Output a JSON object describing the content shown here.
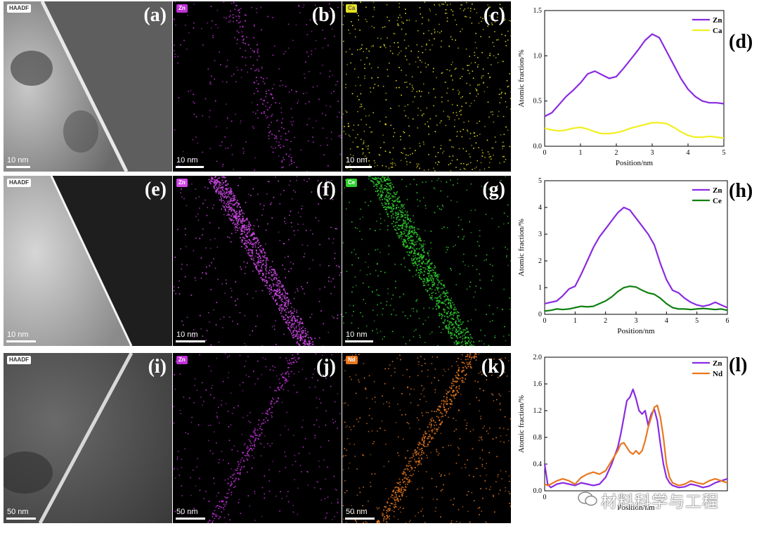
{
  "panels": [
    {
      "id": "a",
      "letter": "(a)",
      "kind": "haadf",
      "tag": "HAADF",
      "scale": "10 nm",
      "variant": 1
    },
    {
      "id": "b",
      "letter": "(b)",
      "kind": "map",
      "tag": "Zn",
      "scale": "10 nm",
      "color": "#c030d8",
      "band": "faint"
    },
    {
      "id": "c",
      "letter": "(c)",
      "kind": "map",
      "tag": "Ca",
      "scale": "10 nm",
      "color": "#e8e020",
      "band": "none"
    },
    {
      "id": "e",
      "letter": "(e)",
      "kind": "haadf",
      "tag": "HAADF",
      "scale": "10 nm",
      "variant": 2
    },
    {
      "id": "f",
      "letter": "(f)",
      "kind": "map",
      "tag": "Zn",
      "scale": "10 nm",
      "color": "#d048e8",
      "band": "strong"
    },
    {
      "id": "g",
      "letter": "(g)",
      "kind": "map",
      "tag": "Ce",
      "scale": "10 nm",
      "color": "#30d030",
      "band": "strong"
    },
    {
      "id": "i",
      "letter": "(i)",
      "kind": "haadf",
      "tag": "HAADF",
      "scale": "50 nm",
      "variant": 3
    },
    {
      "id": "j",
      "letter": "(j)",
      "kind": "map",
      "tag": "Zn",
      "scale": "50 nm",
      "color": "#c030d8",
      "band": "medium"
    },
    {
      "id": "k",
      "letter": "(k)",
      "kind": "map",
      "tag": "Nd",
      "scale": "50 nm",
      "color": "#e87820",
      "band": "medium"
    }
  ],
  "chart_data": [
    {
      "id": "d",
      "letter": "(d)",
      "type": "line",
      "xlabel": "Position/nm",
      "ylabel": "Atomic fraction/%",
      "xlim": [
        0,
        5
      ],
      "ylim": [
        0,
        1.5
      ],
      "xticks": [
        0,
        1,
        2,
        3,
        4,
        5
      ],
      "xtick_labels": [
        "0",
        "1",
        "2",
        "3",
        "4",
        "5"
      ],
      "yticks": [
        0,
        0.5,
        1.0,
        1.5
      ],
      "ytick_labels": [
        "0.0",
        "0.5",
        "1.0",
        "1.5"
      ],
      "legend_position": "top-right",
      "series": [
        {
          "name": "Zn",
          "color": "#8a2be2",
          "x": [
            0,
            0.2,
            0.4,
            0.6,
            0.8,
            1.0,
            1.2,
            1.4,
            1.6,
            1.8,
            2.0,
            2.2,
            2.4,
            2.6,
            2.8,
            3.0,
            3.2,
            3.4,
            3.6,
            3.8,
            4.0,
            4.2,
            4.4,
            4.6,
            4.8,
            5.0
          ],
          "y": [
            0.33,
            0.37,
            0.46,
            0.55,
            0.62,
            0.7,
            0.8,
            0.83,
            0.79,
            0.75,
            0.77,
            0.86,
            0.96,
            1.06,
            1.17,
            1.24,
            1.2,
            1.05,
            0.9,
            0.75,
            0.63,
            0.55,
            0.5,
            0.48,
            0.48,
            0.47
          ]
        },
        {
          "name": "Ca",
          "color": "#f0f020",
          "x": [
            0,
            0.2,
            0.4,
            0.6,
            0.8,
            1.0,
            1.2,
            1.4,
            1.6,
            1.8,
            2.0,
            2.2,
            2.4,
            2.6,
            2.8,
            3.0,
            3.2,
            3.4,
            3.6,
            3.8,
            4.0,
            4.2,
            4.4,
            4.6,
            4.8,
            5.0
          ],
          "y": [
            0.2,
            0.18,
            0.17,
            0.18,
            0.2,
            0.21,
            0.19,
            0.16,
            0.14,
            0.14,
            0.15,
            0.17,
            0.2,
            0.22,
            0.24,
            0.26,
            0.26,
            0.25,
            0.21,
            0.16,
            0.12,
            0.1,
            0.1,
            0.11,
            0.1,
            0.09
          ]
        }
      ]
    },
    {
      "id": "h",
      "letter": "(h)",
      "type": "line",
      "xlabel": "Position/nm",
      "ylabel": "Atomic fraction/%",
      "xlim": [
        0,
        6
      ],
      "ylim": [
        0,
        5
      ],
      "xticks": [
        0,
        1,
        2,
        3,
        4,
        5,
        6
      ],
      "xtick_labels": [
        "0",
        "1",
        "2",
        "3",
        "4",
        "5",
        "6"
      ],
      "yticks": [
        0,
        1,
        2,
        3,
        4,
        5
      ],
      "ytick_labels": [
        "0",
        "1",
        "2",
        "3",
        "4",
        "5"
      ],
      "legend_position": "top-right",
      "series": [
        {
          "name": "Zn",
          "color": "#8a2be2",
          "x": [
            0,
            0.2,
            0.4,
            0.6,
            0.8,
            1.0,
            1.2,
            1.4,
            1.6,
            1.8,
            2.0,
            2.2,
            2.4,
            2.6,
            2.8,
            3.0,
            3.2,
            3.4,
            3.6,
            3.8,
            4.0,
            4.2,
            4.4,
            4.6,
            4.8,
            5.0,
            5.2,
            5.4,
            5.6,
            5.8,
            6.0
          ],
          "y": [
            0.4,
            0.45,
            0.5,
            0.7,
            0.95,
            1.05,
            1.5,
            2.0,
            2.5,
            2.9,
            3.2,
            3.5,
            3.8,
            4.0,
            3.9,
            3.6,
            3.3,
            3.0,
            2.6,
            1.9,
            1.3,
            0.9,
            0.8,
            0.6,
            0.45,
            0.35,
            0.3,
            0.35,
            0.45,
            0.35,
            0.25
          ]
        },
        {
          "name": "Ce",
          "color": "#108010",
          "x": [
            0,
            0.2,
            0.4,
            0.6,
            0.8,
            1.0,
            1.2,
            1.4,
            1.6,
            1.8,
            2.0,
            2.2,
            2.4,
            2.6,
            2.8,
            3.0,
            3.2,
            3.4,
            3.6,
            3.8,
            4.0,
            4.2,
            4.4,
            4.6,
            4.8,
            5.0,
            5.2,
            5.4,
            5.6,
            5.8,
            6.0
          ],
          "y": [
            0.12,
            0.15,
            0.2,
            0.18,
            0.2,
            0.25,
            0.3,
            0.28,
            0.3,
            0.4,
            0.5,
            0.65,
            0.85,
            1.0,
            1.05,
            1.02,
            0.9,
            0.8,
            0.75,
            0.6,
            0.4,
            0.25,
            0.2,
            0.2,
            0.18,
            0.2,
            0.22,
            0.2,
            0.18,
            0.2,
            0.15
          ]
        }
      ]
    },
    {
      "id": "l",
      "letter": "(l)",
      "type": "line",
      "xlabel": "Position/nm",
      "ylabel": "Atomic fraction/%",
      "xlim": [
        0,
        60
      ],
      "ylim": [
        0,
        2.0
      ],
      "xticks": [
        0
      ],
      "xtick_labels": [
        "0"
      ],
      "yticks": [
        0,
        0.4,
        0.8,
        1.2,
        1.6,
        2.0
      ],
      "ytick_labels": [
        "0.0",
        "0.4",
        "0.8",
        "1.2",
        "1.6",
        "2.0"
      ],
      "legend_position": "top-right",
      "series": [
        {
          "name": "Zn",
          "color": "#8a2be2",
          "x": [
            0,
            1,
            2,
            4,
            6,
            8,
            10,
            12,
            14,
            16,
            18,
            20,
            22,
            24,
            25,
            26,
            27,
            28,
            29,
            30,
            31,
            32,
            33,
            34,
            35,
            36,
            37,
            38,
            39,
            40,
            41,
            42,
            44,
            46,
            48,
            50,
            52,
            54,
            56,
            58,
            60
          ],
          "y": [
            0.4,
            0.1,
            0.05,
            0.1,
            0.12,
            0.1,
            0.08,
            0.12,
            0.1,
            0.08,
            0.1,
            0.2,
            0.4,
            0.65,
            0.85,
            1.1,
            1.35,
            1.4,
            1.52,
            1.38,
            1.2,
            1.15,
            1.2,
            0.98,
            1.15,
            1.22,
            1.05,
            0.7,
            0.4,
            0.2,
            0.12,
            0.08,
            0.05,
            0.06,
            0.1,
            0.08,
            0.05,
            0.07,
            0.12,
            0.15,
            0.18
          ]
        },
        {
          "name": "Nd",
          "color": "#e87820",
          "x": [
            0,
            1,
            2,
            4,
            6,
            8,
            10,
            12,
            14,
            16,
            18,
            20,
            22,
            24,
            25,
            26,
            27,
            28,
            29,
            30,
            31,
            32,
            33,
            34,
            35,
            36,
            37,
            38,
            39,
            40,
            41,
            42,
            44,
            46,
            48,
            50,
            52,
            54,
            56,
            58,
            60
          ],
          "y": [
            0.1,
            0.08,
            0.1,
            0.15,
            0.18,
            0.15,
            0.1,
            0.2,
            0.25,
            0.28,
            0.25,
            0.3,
            0.45,
            0.6,
            0.7,
            0.72,
            0.65,
            0.58,
            0.55,
            0.6,
            0.55,
            0.6,
            0.75,
            0.95,
            1.1,
            1.25,
            1.28,
            1.1,
            0.8,
            0.4,
            0.2,
            0.12,
            0.08,
            0.1,
            0.15,
            0.12,
            0.1,
            0.15,
            0.18,
            0.15,
            0.12
          ]
        }
      ]
    }
  ],
  "watermark": {
    "text": "材料科学与工程"
  }
}
